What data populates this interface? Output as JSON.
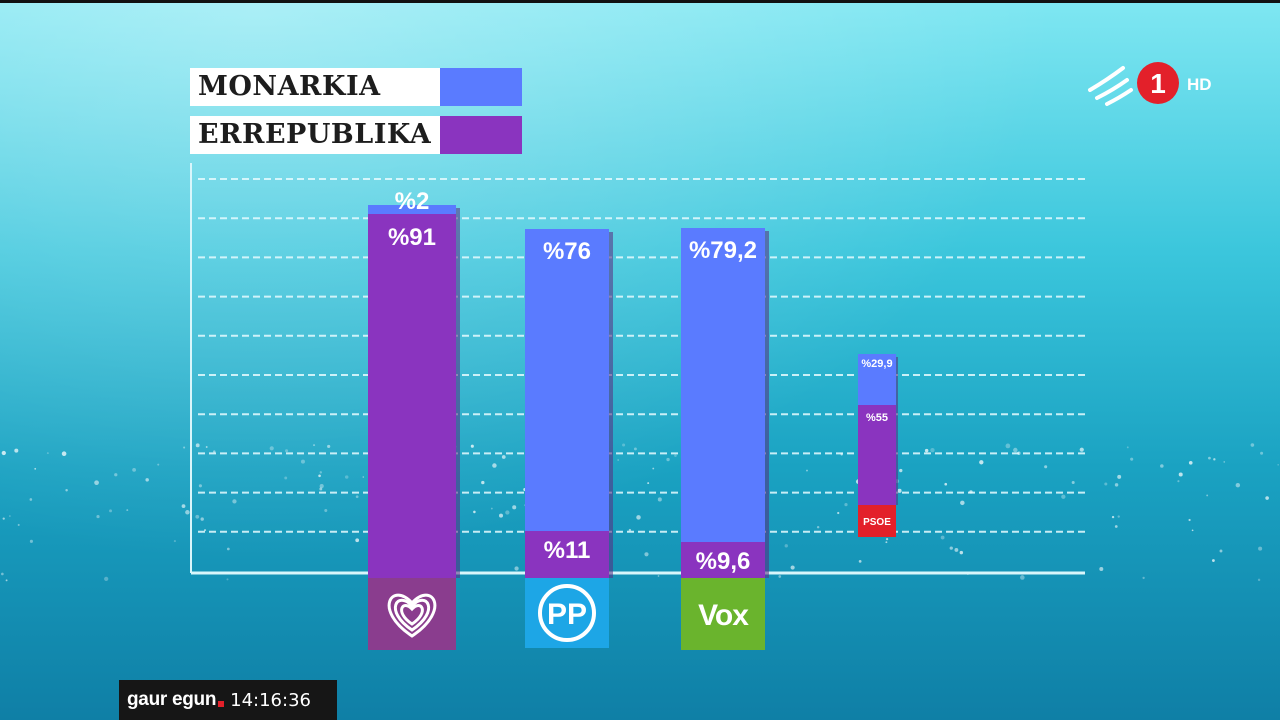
{
  "legend": [
    {
      "label": "MONARKIA",
      "color": "#5a7bff"
    },
    {
      "label": "ERREPUBLIKA",
      "color": "#8a34bf"
    }
  ],
  "chart_data": {
    "type": "bar",
    "stacked": true,
    "title": "",
    "xlabel": "",
    "ylabel": "",
    "categories": [
      "heart-logo",
      "PP",
      "VOX",
      "PSOE"
    ],
    "series": [
      {
        "name": "MONARKIA",
        "color": "#5a7bff",
        "values": [
          2,
          76,
          79.2,
          29.9
        ],
        "labels": [
          "%2",
          "%76",
          "%79,2",
          "%29,9"
        ]
      },
      {
        "name": "ERREPUBLIKA",
        "color": "#8a34bf",
        "values": [
          91,
          11,
          9.6,
          55
        ],
        "labels": [
          "%91",
          "%11",
          "%9,6",
          "%55"
        ]
      }
    ],
    "party_logos": [
      {
        "name": "heart-logo",
        "color": "#8a3d8e",
        "text": ""
      },
      {
        "name": "pp-logo",
        "color": "#1da6e6",
        "text": "PP"
      },
      {
        "name": "vox-logo",
        "color": "#6ab42d",
        "text": "VOX"
      },
      {
        "name": "psoe-logo",
        "color": "#e3202a",
        "text": "PSOE"
      }
    ],
    "grid": true,
    "grid_style": "dashed",
    "legend_position": "top-left"
  },
  "channel": {
    "number": "1",
    "hd": "HD"
  },
  "ticker": {
    "brand": "gaur egun",
    "time": "14:16:36"
  }
}
